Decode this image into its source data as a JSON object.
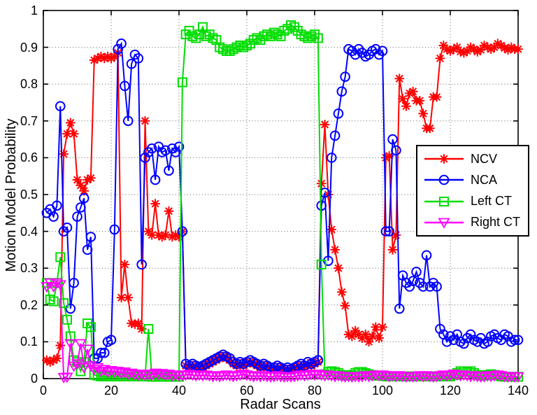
{
  "figure": {
    "x_ticks": [
      0,
      20,
      40,
      60,
      80,
      100,
      120,
      140
    ],
    "x_tick_labels": [
      "0",
      "20",
      "40",
      "60",
      "80",
      "100",
      "120",
      "140"
    ],
    "y_ticks": [
      0,
      0.1,
      0.2,
      0.3,
      0.4,
      0.5,
      0.6,
      0.7,
      0.8,
      0.9,
      1
    ],
    "y_tick_labels": [
      "0",
      "0.1",
      "0.2",
      "0.3",
      "0.4",
      "0.5",
      "0.6",
      "0.7",
      "0.8",
      "0.9",
      "1"
    ],
    "axis_color": "#000000",
    "grid_color": "#606060",
    "background": "#ffffff"
  },
  "legend": {
    "items": [
      {
        "label": "NCV"
      },
      {
        "label": "NCA"
      },
      {
        "label": "Left CT"
      },
      {
        "label": "Right CT"
      }
    ]
  },
  "chart_data": {
    "type": "line",
    "title": "",
    "xlabel": "Radar Scans",
    "ylabel": "Motion Model Probability",
    "xlim": [
      0,
      140
    ],
    "ylim": [
      0,
      1
    ],
    "grid": true,
    "grid_style": "dotted",
    "legend_position": "right-center",
    "x_start": 1,
    "x_step": 1,
    "x_count": 140,
    "series": [
      {
        "name": "NCV",
        "color": "#ff0000",
        "marker": "asterisk",
        "values": [
          0.05,
          0.045,
          0.05,
          0.055,
          0.09,
          0.61,
          0.665,
          0.695,
          0.665,
          0.54,
          0.525,
          0.51,
          0.54,
          0.545,
          0.865,
          0.87,
          0.875,
          0.87,
          0.875,
          0.87,
          0.875,
          0.885,
          0.22,
          0.31,
          0.22,
          0.15,
          0.148,
          0.15,
          0.135,
          0.7,
          0.4,
          0.39,
          0.475,
          0.39,
          0.385,
          0.39,
          0.455,
          0.385,
          0.39,
          0.385,
          0.4,
          0.035,
          0.03,
          0.035,
          0.03,
          0.025,
          0.03,
          0.035,
          0.04,
          0.045,
          0.05,
          0.055,
          0.06,
          0.055,
          0.05,
          0.04,
          0.035,
          0.04,
          0.035,
          0.04,
          0.045,
          0.04,
          0.035,
          0.03,
          0.035,
          0.03,
          0.025,
          0.025,
          0.03,
          0.025,
          0.02,
          0.025,
          0.02,
          0.025,
          0.03,
          0.035,
          0.03,
          0.04,
          0.035,
          0.04,
          0.045,
          0.53,
          0.69,
          0.5,
          0.405,
          0.35,
          0.3,
          0.235,
          0.198,
          0.12,
          0.115,
          0.13,
          0.12,
          0.11,
          0.12,
          0.1,
          0.115,
          0.14,
          0.11,
          0.14,
          0.6,
          0.605,
          0.35,
          0.39,
          0.815,
          0.76,
          0.74,
          0.775,
          0.78,
          0.755,
          0.755,
          0.72,
          0.68,
          0.68,
          0.765,
          0.765,
          0.87,
          0.905,
          0.895,
          0.89,
          0.895,
          0.9,
          0.888,
          0.885,
          0.89,
          0.9,
          0.895,
          0.888,
          0.893,
          0.905,
          0.9,
          0.895,
          0.9,
          0.91,
          0.905,
          0.898,
          0.893,
          0.9,
          0.895,
          0.895
        ]
      },
      {
        "name": "NCA",
        "color": "#0000ff",
        "marker": "circle",
        "values": [
          0.45,
          0.46,
          0.44,
          0.47,
          0.74,
          0.4,
          0.41,
          0.19,
          0.26,
          0.44,
          0.465,
          0.49,
          0.35,
          0.385,
          0.055,
          0.055,
          0.07,
          0.07,
          0.1,
          0.105,
          0.405,
          0.895,
          0.91,
          0.795,
          0.7,
          0.855,
          0.88,
          0.87,
          0.31,
          0.6,
          0.615,
          0.625,
          0.54,
          0.63,
          0.615,
          0.62,
          0.565,
          0.625,
          0.615,
          0.63,
          0.4,
          0.04,
          0.035,
          0.04,
          0.035,
          0.03,
          0.035,
          0.04,
          0.045,
          0.05,
          0.055,
          0.06,
          0.065,
          0.06,
          0.055,
          0.045,
          0.04,
          0.045,
          0.04,
          0.045,
          0.05,
          0.045,
          0.04,
          0.035,
          0.04,
          0.035,
          0.03,
          0.03,
          0.035,
          0.03,
          0.025,
          0.03,
          0.025,
          0.03,
          0.035,
          0.04,
          0.035,
          0.045,
          0.04,
          0.045,
          0.05,
          0.47,
          0.505,
          0.32,
          0.6,
          0.66,
          0.72,
          0.78,
          0.82,
          0.895,
          0.89,
          0.88,
          0.895,
          0.885,
          0.875,
          0.88,
          0.89,
          0.895,
          0.88,
          0.89,
          0.4,
          0.4,
          0.65,
          0.62,
          0.19,
          0.28,
          0.26,
          0.25,
          0.265,
          0.29,
          0.26,
          0.25,
          0.335,
          0.25,
          0.26,
          0.25,
          0.135,
          0.12,
          0.1,
          0.115,
          0.105,
          0.12,
          0.1,
          0.095,
          0.11,
          0.12,
          0.105,
          0.1,
          0.11,
          0.095,
          0.1,
          0.115,
          0.12,
          0.11,
          0.105,
          0.12,
          0.115,
          0.1,
          0.105,
          0.105
        ]
      },
      {
        "name": "Left CT",
        "color": "#00dd00",
        "marker": "square",
        "values": [
          0.26,
          0.215,
          0.21,
          0.26,
          0.33,
          0.205,
          0.16,
          0.115,
          0.05,
          0.045,
          0.02,
          0.045,
          0.15,
          0.14,
          0.01,
          0.008,
          0.006,
          0.006,
          0.006,
          0.006,
          0.006,
          0.006,
          0.006,
          0.006,
          0.006,
          0.006,
          0.006,
          0.006,
          0.006,
          0.006,
          0.135,
          0.005,
          0.005,
          0.005,
          0.005,
          0.005,
          0.005,
          0.005,
          0.005,
          0.005,
          0.805,
          0.935,
          0.945,
          0.93,
          0.925,
          0.935,
          0.955,
          0.93,
          0.935,
          0.925,
          0.92,
          0.9,
          0.895,
          0.89,
          0.89,
          0.895,
          0.9,
          0.905,
          0.9,
          0.905,
          0.91,
          0.92,
          0.925,
          0.92,
          0.93,
          0.935,
          0.93,
          0.94,
          0.935,
          0.93,
          0.945,
          0.95,
          0.96,
          0.955,
          0.945,
          0.935,
          0.93,
          0.925,
          0.93,
          0.935,
          0.925,
          0.31,
          0.012,
          0.018,
          0.02,
          0.018,
          0.015,
          0.01,
          0.008,
          0.008,
          0.01,
          0.015,
          0.018,
          0.018,
          0.015,
          0.012,
          0.01,
          0.008,
          0.008,
          0.008,
          0.006,
          0.006,
          0.006,
          0.006,
          0.006,
          0.006,
          0.006,
          0.006,
          0.006,
          0.006,
          0.006,
          0.006,
          0.006,
          0.006,
          0.006,
          0.006,
          0.006,
          0.006,
          0.006,
          0.006,
          0.01,
          0.015,
          0.02,
          0.02,
          0.018,
          0.02,
          0.015,
          0.01,
          0.008,
          0.008,
          0.01,
          0.012,
          0.01,
          0.008,
          0.006,
          0.005,
          0.005,
          0.005,
          0.005,
          0.005
        ]
      },
      {
        "name": "Right CT",
        "color": "#ff00ff",
        "marker": "triangle-down",
        "values": [
          0.25,
          0.26,
          0.25,
          0.26,
          0.255,
          0.003,
          0.004,
          0.095,
          0.034,
          0.04,
          0.095,
          0.03,
          0.08,
          0.035,
          0.025,
          0.03,
          0.02,
          0.025,
          0.018,
          0.022,
          0.018,
          0.02,
          0.015,
          0.018,
          0.012,
          0.015,
          0.012,
          0.01,
          0.012,
          0.01,
          0.012,
          0.01,
          0.015,
          0.012,
          0.014,
          0.01,
          0.012,
          0.008,
          0.01,
          0.008,
          0.01,
          0.01,
          0.012,
          0.01,
          0.008,
          0.01,
          0.008,
          0.01,
          0.008,
          0.006,
          0.008,
          0.006,
          0.008,
          0.01,
          0.008,
          0.006,
          0.008,
          0.01,
          0.012,
          0.01,
          0.008,
          0.006,
          0.008,
          0.006,
          0.008,
          0.006,
          0.005,
          0.006,
          0.008,
          0.006,
          0.005,
          0.006,
          0.005,
          0.006,
          0.008,
          0.01,
          0.008,
          0.01,
          0.012,
          0.01,
          0.012,
          0.01,
          0.008,
          0.01,
          0.008,
          0.006,
          0.008,
          0.006,
          0.005,
          0.006,
          0.005,
          0.006,
          0.005,
          0.006,
          0.008,
          0.006,
          0.008,
          0.01,
          0.008,
          0.01,
          0.008,
          0.006,
          0.008,
          0.006,
          0.008,
          0.006,
          0.005,
          0.006,
          0.005,
          0.006,
          0.008,
          0.006,
          0.008,
          0.006,
          0.005,
          0.006,
          0.008,
          0.01,
          0.008,
          0.01,
          0.012,
          0.01,
          0.008,
          0.01,
          0.008,
          0.006,
          0.008,
          0.006,
          0.005,
          0.006,
          0.008,
          0.006,
          0.008,
          0.01,
          0.008,
          0.006,
          0.005,
          0.006,
          0.005,
          0.005
        ]
      }
    ]
  }
}
